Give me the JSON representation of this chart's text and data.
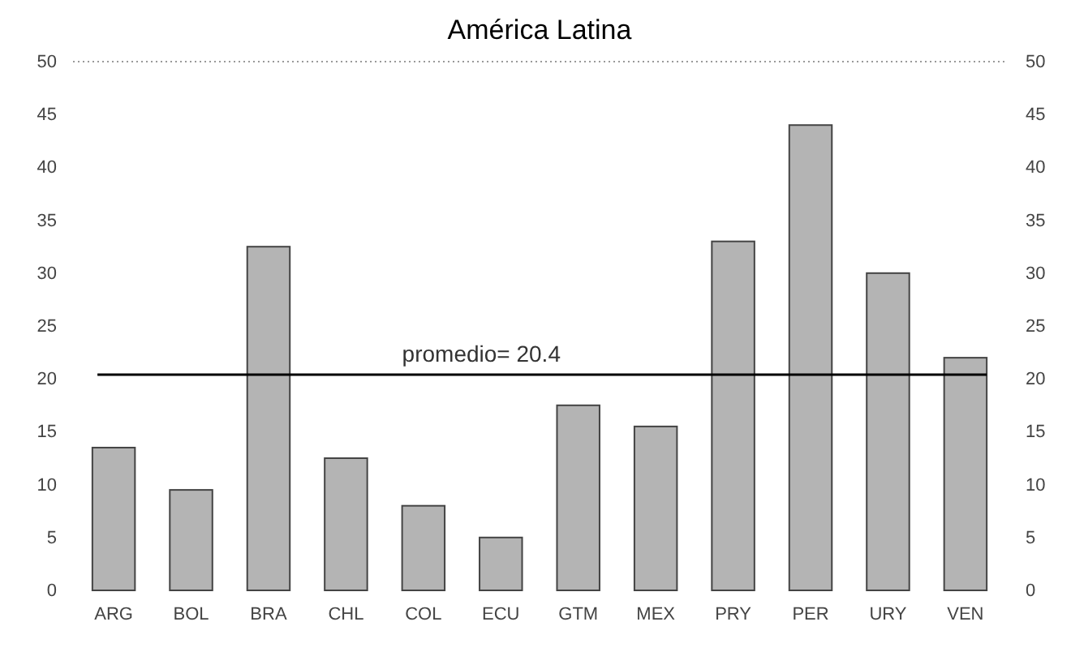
{
  "chart_data": {
    "type": "bar",
    "title": "América Latina",
    "categories": [
      "ARG",
      "BOL",
      "BRA",
      "CHL",
      "COL",
      "ECU",
      "GTM",
      "MEX",
      "PRY",
      "PER",
      "URY",
      "VEN"
    ],
    "values": [
      13.5,
      9.5,
      32.5,
      12.5,
      8,
      5,
      17.5,
      15.5,
      33,
      44,
      30,
      22
    ],
    "color": "#b4b4b4",
    "ylim": [
      0,
      50
    ],
    "yticks": [
      0,
      5,
      10,
      15,
      20,
      25,
      30,
      35,
      40,
      45,
      50
    ],
    "y2lim": [
      0,
      50
    ],
    "y2ticks": [
      0,
      5,
      10,
      15,
      20,
      25,
      30,
      35,
      40,
      45,
      50
    ],
    "ref_lines": [
      {
        "axis": "y",
        "value": 20.4,
        "label": "promedio= 20.4",
        "color": "#000000"
      }
    ],
    "grid": false
  }
}
